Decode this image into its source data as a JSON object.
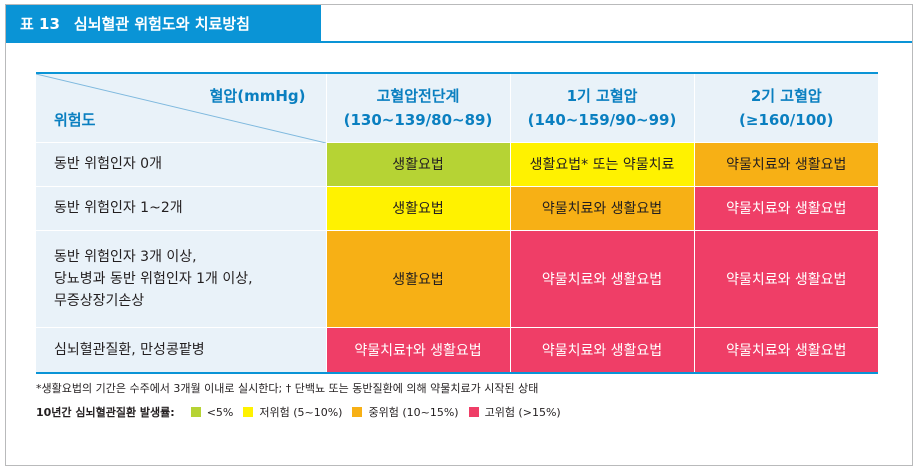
{
  "title": {
    "number": "표 13",
    "text": "심뇌혈관 위험도와 치료방침"
  },
  "header": {
    "bp_label": "혈압(mmHg)",
    "risk_label": "위험도",
    "stages": [
      {
        "name": "고혈압전단계",
        "range": "(130~139/80~89)"
      },
      {
        "name": "1기 고혈압",
        "range": "(140~159/90~99)"
      },
      {
        "name": "2기 고혈압",
        "range": "(≥160/100)"
      }
    ]
  },
  "rows": [
    {
      "label": "동반 위험인자 0개",
      "cells": [
        "생활요법",
        "생활요법* 또는 약물치료",
        "약물치료와 생활요법"
      ],
      "levels": [
        "low",
        "mild",
        "moderate"
      ]
    },
    {
      "label": "동반 위험인자 1~2개",
      "cells": [
        "생활요법",
        "약물치료와 생활요법",
        "약물치료와 생활요법"
      ],
      "levels": [
        "mild",
        "moderate",
        "high"
      ]
    },
    {
      "label_lines": [
        "동반 위험인자 3개 이상,",
        "당뇨병과 동반 위험인자 1개 이상,",
        "무증상장기손상"
      ],
      "cells": [
        "생활요법",
        "약물치료와 생활요법",
        "약물치료와 생활요법"
      ],
      "levels": [
        "moderate",
        "high",
        "high"
      ]
    },
    {
      "label": "심뇌혈관질환, 만성콩팥병",
      "cells": [
        "약물치료†와 생활요법",
        "약물치료와 생활요법",
        "약물치료와 생활요법"
      ],
      "levels": [
        "high",
        "high",
        "high"
      ]
    }
  ],
  "footnote": "*생활요법의 기간은 수주에서 3개월 이내로 실시한다;  † 단백뇨 또는 동반질환에 의해 약물치료가 시작된 상태",
  "legend": {
    "title": "10년간 심뇌혈관질환 발생률:",
    "items": [
      {
        "label": "<5%",
        "color": "#b6d334"
      },
      {
        "label": "저위험 (5~10%)",
        "color": "#fff200"
      },
      {
        "label": "중위험 (10~15%)",
        "color": "#f7b015"
      },
      {
        "label": "고위험 (>15%)",
        "color": "#ef3e67"
      }
    ]
  },
  "colors": {
    "accent": "#0a94d6",
    "header_bg": "#e9f2f9"
  }
}
